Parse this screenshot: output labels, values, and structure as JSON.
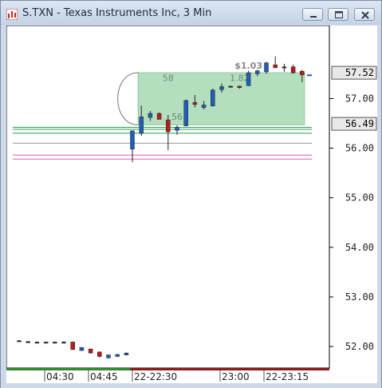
{
  "window": {
    "title": "S.TXN - Texas Instruments Inc, 3 Min",
    "icon": "chart-app-icon",
    "buttons": [
      "minimize-icon",
      "maximize-icon",
      "close-icon"
    ]
  },
  "colors": {
    "up": "#1f5fb7",
    "down": "#b71c1c",
    "neutral": "#333333",
    "position_box": "#a6d9b3",
    "support_lines": "#2e9e55",
    "resistance_lines": "#e25cb8",
    "bid_line": "#999999",
    "session_pre": "#2e8b2e",
    "session_main": "#8b1a1a"
  },
  "chart_data": {
    "type": "candlestick",
    "symbol": "S.TXN",
    "interval": "3 Min",
    "y_ticks": [
      "57.00",
      "56.00",
      "55.00",
      "54.00",
      "53.00",
      "52.00"
    ],
    "ylim": [
      51.55,
      58.15
    ],
    "price_labels": [
      {
        "value": 57.52,
        "text": "57.52"
      },
      {
        "value": 56.49,
        "text": "56.49"
      }
    ],
    "x_labels": [
      "04:30",
      "04:45",
      "22-22:30",
      "23:00",
      "22-23:15"
    ],
    "session_break_after_index": 13,
    "candles": [
      {
        "o": 52.12,
        "h": 52.13,
        "l": 52.11,
        "c": 52.12
      },
      {
        "o": 52.1,
        "h": 52.11,
        "l": 52.09,
        "c": 52.09
      },
      {
        "o": 52.09,
        "h": 52.1,
        "l": 52.08,
        "c": 52.09
      },
      {
        "o": 52.09,
        "h": 52.1,
        "l": 52.08,
        "c": 52.08
      },
      {
        "o": 52.09,
        "h": 52.1,
        "l": 52.08,
        "c": 52.09
      },
      {
        "o": 52.09,
        "h": 52.11,
        "l": 52.08,
        "c": 52.09
      },
      {
        "o": 52.09,
        "h": 52.1,
        "l": 51.93,
        "c": 51.94
      },
      {
        "o": 51.92,
        "h": 51.99,
        "l": 51.91,
        "c": 51.98
      },
      {
        "o": 51.95,
        "h": 51.96,
        "l": 51.86,
        "c": 51.87
      },
      {
        "o": 51.89,
        "h": 51.9,
        "l": 51.78,
        "c": 51.8
      },
      {
        "o": 51.77,
        "h": 51.84,
        "l": 51.76,
        "c": 51.83
      },
      {
        "o": 51.8,
        "h": 51.85,
        "l": 51.79,
        "c": 51.84
      },
      {
        "o": 51.83,
        "h": 51.88,
        "l": 51.82,
        "c": 51.87
      },
      {
        "o": 55.98,
        "h": 56.35,
        "l": 55.72,
        "c": 56.35
      },
      {
        "o": 56.3,
        "h": 56.86,
        "l": 56.25,
        "c": 56.63
      },
      {
        "o": 56.62,
        "h": 56.75,
        "l": 56.55,
        "c": 56.7
      },
      {
        "o": 56.7,
        "h": 56.72,
        "l": 56.58,
        "c": 56.58
      },
      {
        "o": 56.57,
        "h": 56.67,
        "l": 55.96,
        "c": 56.33
      },
      {
        "o": 56.36,
        "h": 56.46,
        "l": 56.27,
        "c": 56.42
      },
      {
        "o": 56.45,
        "h": 56.98,
        "l": 56.44,
        "c": 56.96
      },
      {
        "o": 56.92,
        "h": 57.07,
        "l": 56.82,
        "c": 56.88
      },
      {
        "o": 56.82,
        "h": 56.95,
        "l": 56.78,
        "c": 56.87
      },
      {
        "o": 56.85,
        "h": 57.2,
        "l": 56.84,
        "c": 57.17
      },
      {
        "o": 57.18,
        "h": 57.3,
        "l": 57.12,
        "c": 57.24
      },
      {
        "o": 57.25,
        "h": 57.26,
        "l": 57.22,
        "c": 57.24
      },
      {
        "o": 57.25,
        "h": 57.26,
        "l": 57.2,
        "c": 57.22
      },
      {
        "o": 57.26,
        "h": 57.56,
        "l": 57.25,
        "c": 57.52
      },
      {
        "o": 57.5,
        "h": 57.58,
        "l": 57.45,
        "c": 57.56
      },
      {
        "o": 57.54,
        "h": 57.74,
        "l": 57.5,
        "c": 57.72
      },
      {
        "o": 57.68,
        "h": 57.85,
        "l": 57.62,
        "c": 57.62
      },
      {
        "o": 57.64,
        "h": 57.7,
        "l": 57.54,
        "c": 57.64
      },
      {
        "o": 57.64,
        "h": 57.68,
        "l": 57.5,
        "c": 57.52
      },
      {
        "o": 57.55,
        "h": 57.58,
        "l": 57.33,
        "c": 57.48
      }
    ],
    "current_tick": 57.47,
    "position_box": {
      "price_top": 57.52,
      "price_bottom": 56.47,
      "start_index": 14,
      "end_index": 32
    },
    "annotations": [
      {
        "text": "$1.03",
        "price": 57.6,
        "index": 26
      },
      {
        "text": "58",
        "price": 57.35,
        "index": 17
      },
      {
        "text": "1.82",
        "price": 57.35,
        "index": 25
      },
      {
        "text": "56",
        "price": 56.57,
        "index": 18
      }
    ],
    "support_lines": [
      56.42,
      56.38,
      56.3
    ],
    "resistance_lines": [
      55.86,
      55.78
    ],
    "bid_line": 56.1,
    "gridlines": false
  }
}
